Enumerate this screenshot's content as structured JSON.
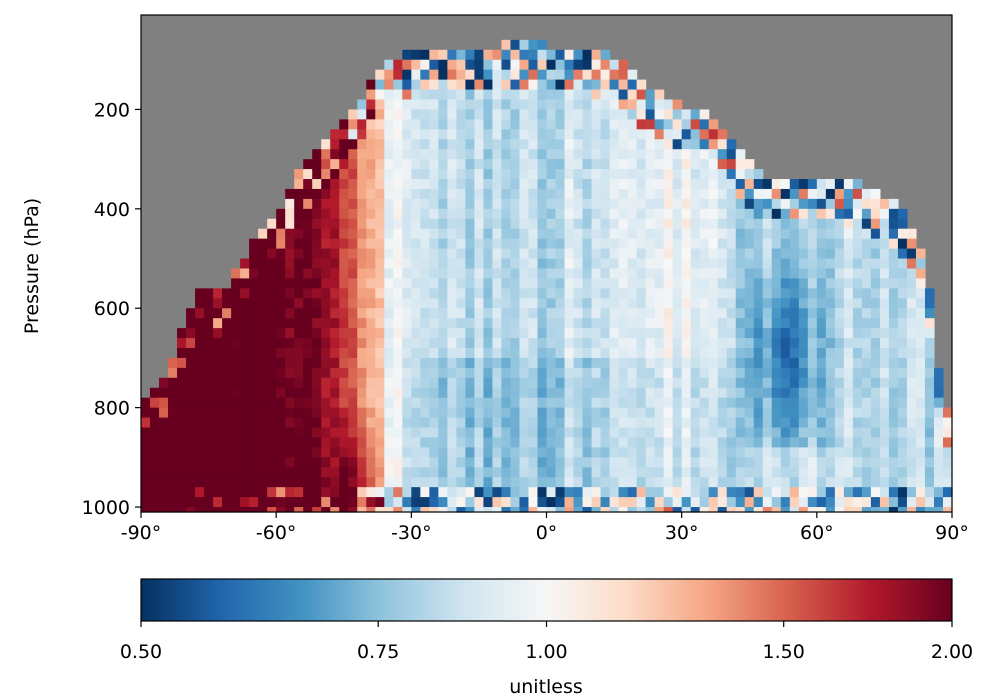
{
  "chart_data": {
    "type": "heatmap",
    "title": "",
    "xlabel": "",
    "ylabel": "Pressure (hPa)",
    "xlim": [
      -90,
      90
    ],
    "ylim": [
      1010,
      10
    ],
    "x_ticks": [
      -90,
      -60,
      -30,
      0,
      30,
      60,
      90
    ],
    "x_tick_labels": [
      "-90°",
      "-60°",
      "-30°",
      "0°",
      "30°",
      "60°",
      "90°"
    ],
    "y_ticks": [
      200,
      400,
      600,
      800,
      1000
    ],
    "y_tick_labels": [
      "200",
      "400",
      "600",
      "800",
      "1000"
    ],
    "missing_color": "#808080",
    "colorbar": {
      "label": "unitless",
      "ticks": [
        0.5,
        0.75,
        1.0,
        1.5,
        2.0
      ],
      "tick_labels": [
        "0.50",
        "0.75",
        "1.00",
        "1.50",
        "2.00"
      ],
      "scale": "log",
      "range": [
        0.5,
        2.0
      ],
      "colormap": "RdBu_r",
      "colors": [
        "#053061",
        "#2166ac",
        "#4393c3",
        "#92c5de",
        "#d1e5f0",
        "#f7f7f7",
        "#fddbc7",
        "#f4a582",
        "#d6604d",
        "#b2182b",
        "#67001f"
      ]
    },
    "grid": {
      "lat_step": 2,
      "pressure_step": 20,
      "pressure_top": 60,
      "pressure_bottom": 1010
    },
    "data_top_pressure_by_latitude": [
      {
        "lat": -90,
        "p": 780
      },
      {
        "lat": -87,
        "p": 760
      },
      {
        "lat": -84,
        "p": 730
      },
      {
        "lat": -81,
        "p": 650
      },
      {
        "lat": -78,
        "p": 570
      },
      {
        "lat": -72,
        "p": 570
      },
      {
        "lat": -66,
        "p": 480
      },
      {
        "lat": -60,
        "p": 410
      },
      {
        "lat": -56,
        "p": 340
      },
      {
        "lat": -50,
        "p": 280
      },
      {
        "lat": -46,
        "p": 240
      },
      {
        "lat": -40,
        "p": 160
      },
      {
        "lat": -36,
        "p": 110
      },
      {
        "lat": -30,
        "p": 80
      },
      {
        "lat": -20,
        "p": 75
      },
      {
        "lat": -10,
        "p": 70
      },
      {
        "lat": 0,
        "p": 70
      },
      {
        "lat": 10,
        "p": 80
      },
      {
        "lat": 16,
        "p": 100
      },
      {
        "lat": 20,
        "p": 140
      },
      {
        "lat": 26,
        "p": 170
      },
      {
        "lat": 30,
        "p": 190
      },
      {
        "lat": 36,
        "p": 210
      },
      {
        "lat": 40,
        "p": 240
      },
      {
        "lat": 44,
        "p": 300
      },
      {
        "lat": 48,
        "p": 340
      },
      {
        "lat": 66,
        "p": 340
      },
      {
        "lat": 70,
        "p": 350
      },
      {
        "lat": 76,
        "p": 380
      },
      {
        "lat": 80,
        "p": 420
      },
      {
        "lat": 84,
        "p": 500
      },
      {
        "lat": 86,
        "p": 640
      },
      {
        "lat": 88,
        "p": 800
      },
      {
        "lat": 90,
        "p": 800
      }
    ],
    "regions": [
      {
        "lat_range": [
          -90,
          -50
        ],
        "pressure_range": [
          500,
          1000
        ],
        "value": 1.8
      },
      {
        "lat_range": [
          -50,
          -35
        ],
        "pressure_range": [
          300,
          1000
        ],
        "value": 1.2
      },
      {
        "lat_range": [
          -35,
          40
        ],
        "pressure_range": [
          70,
          1000
        ],
        "value": 0.82
      },
      {
        "lat_range": [
          45,
          65
        ],
        "pressure_range": [
          500,
          900
        ],
        "value": 0.55
      },
      {
        "lat_range": [
          65,
          90
        ],
        "pressure_range": [
          350,
          1000
        ],
        "value": 0.75
      }
    ]
  }
}
